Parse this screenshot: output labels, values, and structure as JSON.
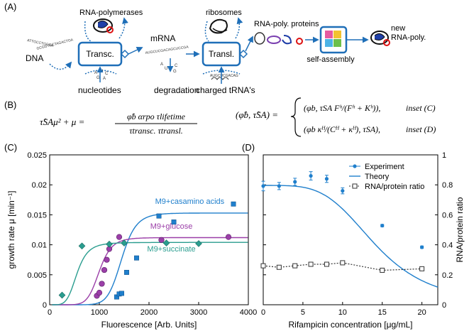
{
  "panel_labels": {
    "a": "(A)",
    "b": "(B)",
    "c": "(C)",
    "d": "(D)"
  },
  "schematic": {
    "rna_polymerases": "RNA-polymerases",
    "ribosomes": "ribosomes",
    "rna_poly_proteins": "RNA-poly. proteins",
    "new_rna_poly_line1": "new",
    "new_rna_poly_line2": "RNA-poly.",
    "dna": "DNA",
    "transc": "Transc.",
    "mrna": "mRNA",
    "transl": "Transl.",
    "self_assembly": "self-assembly",
    "nucleotides": "nucleotides",
    "degradation": "degradation",
    "charged_trna": "charged tRNA's",
    "dna_seq1": "ATTGCCTGCGA",
    "dna_seq2": "GCGGTGCTAGACTGA",
    "mrna_seq": "AUGCUCGACAGCUCCGA",
    "trna_seq": "AUGCUCGACAG"
  },
  "equations": {
    "eq1_lhs": "τ̂SAμ² + μ =",
    "eq1_num": "φ̂b αrpo τlifetime",
    "eq1_den": "τtransc. τtransl.",
    "eq2_lhs": "(φ̂b, τ̂SA) =",
    "eq2_case1": "(φb, τSA Fʰ/(Fʰ + Kʰ)),",
    "eq2_case1_tag": "inset (C)",
    "eq2_case2": "(φb κᴴ/(Cᴴ + κᴴ), τSA),",
    "eq2_case2_tag": "inset (D)"
  },
  "chart_data": [
    {
      "type": "scatter",
      "panel": "C",
      "xlabel": "Fluorescence [Arb. Units]",
      "ylabel": "growth rate μ [min⁻¹]",
      "xlim": [
        0,
        4000
      ],
      "ylim": [
        0,
        0.025
      ],
      "xticks": [
        "0",
        "1000",
        "2000",
        "3000",
        "4000"
      ],
      "yticks": [
        "0",
        "0.005",
        "0.01",
        "0.015",
        "0.02",
        "0.025"
      ],
      "series": [
        {
          "name": "M9+casamino acids",
          "color": "#1f7fcc",
          "marker": "square",
          "x": [
            1350,
            1400,
            1450,
            1550,
            1750,
            2200,
            2500,
            3700
          ],
          "y": [
            0.0013,
            0.0018,
            0.0019,
            0.0054,
            0.0078,
            0.0148,
            0.0138,
            0.0168
          ]
        },
        {
          "name": "M9+glucose",
          "color": "#9b3fa8",
          "marker": "circle",
          "x": [
            950,
            1000,
            1050,
            1100,
            1150,
            1200,
            1400,
            2250,
            3600
          ],
          "y": [
            0.0015,
            0.002,
            0.0035,
            0.0058,
            0.0075,
            0.0093,
            0.0113,
            0.0108,
            0.0113
          ]
        },
        {
          "name": "M9+succinate",
          "color": "#2a9d8f",
          "marker": "diamond",
          "x": [
            250,
            650,
            1200,
            1500,
            2350,
            3000
          ],
          "y": [
            0.0016,
            0.0098,
            0.0101,
            0.0103,
            0.0103,
            0.0102
          ]
        }
      ],
      "curves": [
        {
          "name": "M9+casamino acids",
          "color": "#1f7fcc",
          "ymax": 0.0153,
          "K": 1450,
          "h": 10
        },
        {
          "name": "M9+glucose",
          "color": "#9b3fa8",
          "ymax": 0.0112,
          "K": 1000,
          "h": 8
        },
        {
          "name": "M9+succinate",
          "color": "#2a9d8f",
          "ymax": 0.0104,
          "K": 550,
          "h": 5
        }
      ]
    },
    {
      "type": "line",
      "panel": "D",
      "xlabel": "Rifampicin concentration [μg/mL]",
      "ylabel_right": "RNA/protein ratio",
      "xlim": [
        0,
        22
      ],
      "ylim_left": [
        0,
        0.025
      ],
      "ylim_right": [
        0,
        1
      ],
      "xticks": [
        "0",
        "5",
        "10",
        "15",
        "20"
      ],
      "yticks_right": [
        "0",
        "0.2",
        "0.4",
        "0.6",
        "0.8",
        "1"
      ],
      "legend": {
        "position": "top-right",
        "entries": [
          "Experiment",
          "Theory",
          "RNA/protein ratio"
        ]
      },
      "experiment": {
        "color": "#1f7fcc",
        "x": [
          0,
          2,
          4,
          6,
          8,
          10,
          15,
          20
        ],
        "y": [
          0.0198,
          0.0198,
          0.0205,
          0.0215,
          0.021,
          0.019,
          0.0132,
          0.0096
        ],
        "err": [
          0.0008,
          0.0006,
          0.0006,
          0.0007,
          0.0006,
          0.0005,
          0.0002,
          0.0002
        ]
      },
      "theory": {
        "color": "#1f7fcc",
        "ymax": 0.0199,
        "K": 14.2,
        "h": 4
      },
      "rna_protein_ratio": {
        "color": "#333333",
        "x": [
          0,
          2,
          4,
          6,
          8,
          10,
          15,
          20
        ],
        "y": [
          0.26,
          0.25,
          0.26,
          0.27,
          0.27,
          0.28,
          0.23,
          0.24
        ]
      }
    }
  ]
}
